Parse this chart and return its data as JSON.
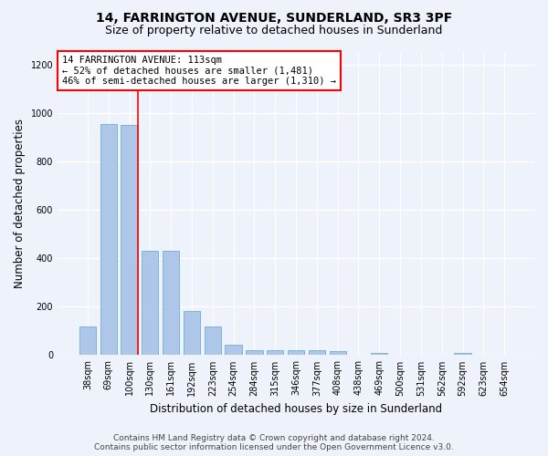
{
  "title": "14, FARRINGTON AVENUE, SUNDERLAND, SR3 3PF",
  "subtitle": "Size of property relative to detached houses in Sunderland",
  "xlabel": "Distribution of detached houses by size in Sunderland",
  "ylabel": "Number of detached properties",
  "categories": [
    "38sqm",
    "69sqm",
    "100sqm",
    "130sqm",
    "161sqm",
    "192sqm",
    "223sqm",
    "254sqm",
    "284sqm",
    "315sqm",
    "346sqm",
    "377sqm",
    "408sqm",
    "438sqm",
    "469sqm",
    "500sqm",
    "531sqm",
    "562sqm",
    "592sqm",
    "623sqm",
    "654sqm"
  ],
  "values": [
    120,
    955,
    950,
    430,
    430,
    183,
    120,
    42,
    20,
    20,
    20,
    20,
    15,
    0,
    8,
    0,
    0,
    0,
    8,
    0,
    0
  ],
  "bar_color": "#aec6e8",
  "bar_edge_color": "#6baed6",
  "annotation_box_text": "14 FARRINGTON AVENUE: 113sqm\n← 52% of detached houses are smaller (1,481)\n46% of semi-detached houses are larger (1,310) →",
  "annotation_box_color": "white",
  "annotation_box_edge_color": "red",
  "annotation_line_color": "red",
  "footer_line1": "Contains HM Land Registry data © Crown copyright and database right 2024.",
  "footer_line2": "Contains public sector information licensed under the Open Government Licence v3.0.",
  "ylim": [
    0,
    1250
  ],
  "yticks": [
    0,
    200,
    400,
    600,
    800,
    1000,
    1200
  ],
  "background_color": "#eef2fa",
  "plot_background_color": "#eef2fa",
  "grid_color": "#ffffff",
  "title_fontsize": 10,
  "subtitle_fontsize": 9,
  "axis_label_fontsize": 8.5,
  "tick_fontsize": 7,
  "annotation_fontsize": 7.5,
  "footer_fontsize": 6.5
}
